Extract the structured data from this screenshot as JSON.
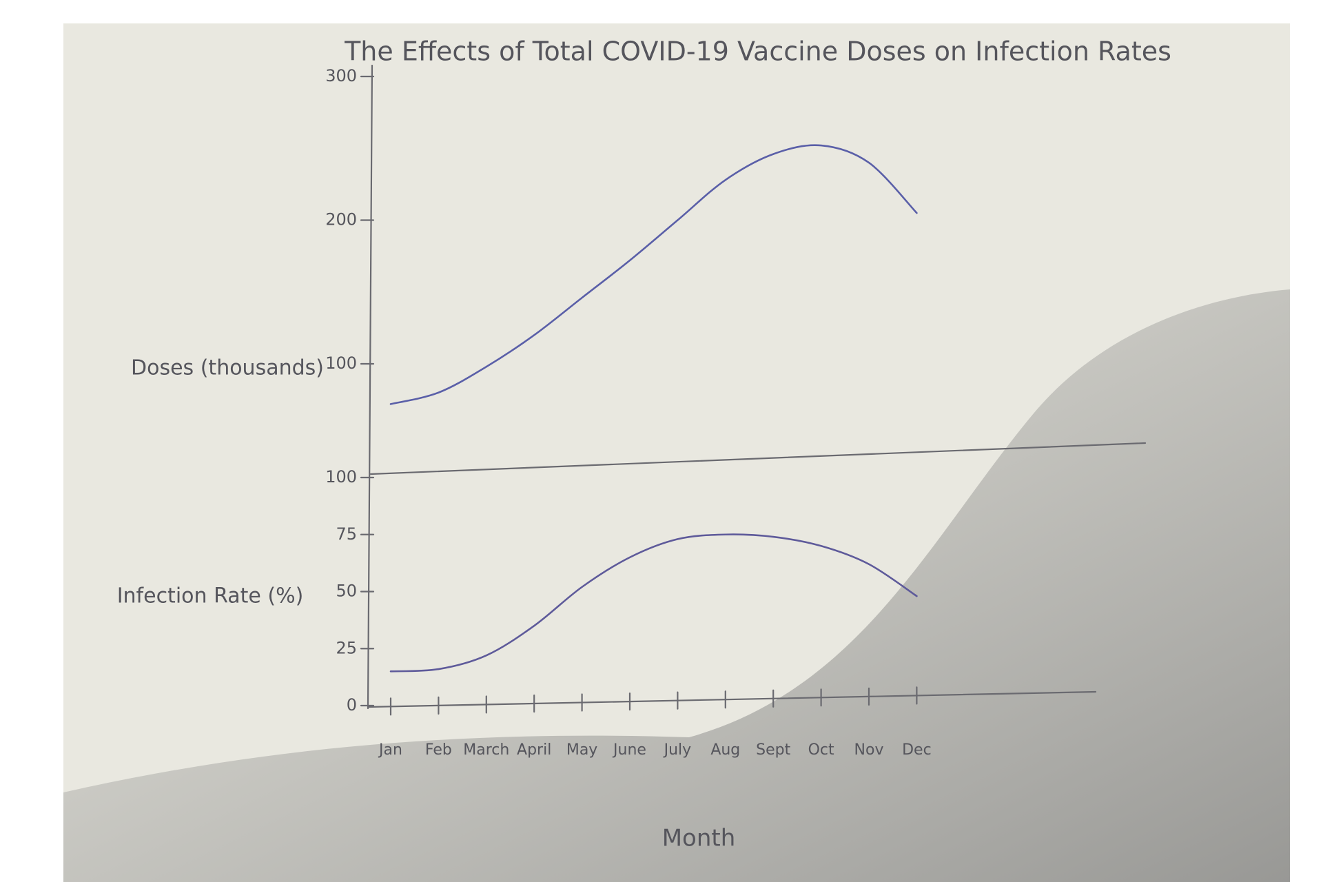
{
  "chart_data": [
    {
      "type": "line",
      "title": "The Effects of Total COVID-19 Vaccine Doses on Infection Rates",
      "ylabel": "Doses (thousands)",
      "values": [
        72,
        80,
        98,
        120,
        146,
        172,
        200,
        228,
        246,
        252,
        240,
        205
      ],
      "color": "#5a5fa8",
      "ylim": [
        30,
        300
      ],
      "yticks": [
        100,
        200,
        300
      ]
    },
    {
      "type": "line",
      "ylabel": "Infection Rate (%)",
      "xlabel": "Month",
      "categories": [
        "Jan",
        "Feb",
        "March",
        "April",
        "May",
        "June",
        "July",
        "Aug",
        "Sept",
        "Oct",
        "Nov",
        "Dec"
      ],
      "values": [
        15,
        16,
        22,
        35,
        52,
        65,
        73,
        75,
        74,
        70,
        62,
        48
      ],
      "color": "#5e5a9a",
      "ylim": [
        0,
        100
      ],
      "yticks": [
        0,
        25,
        50,
        75,
        100
      ]
    }
  ]
}
